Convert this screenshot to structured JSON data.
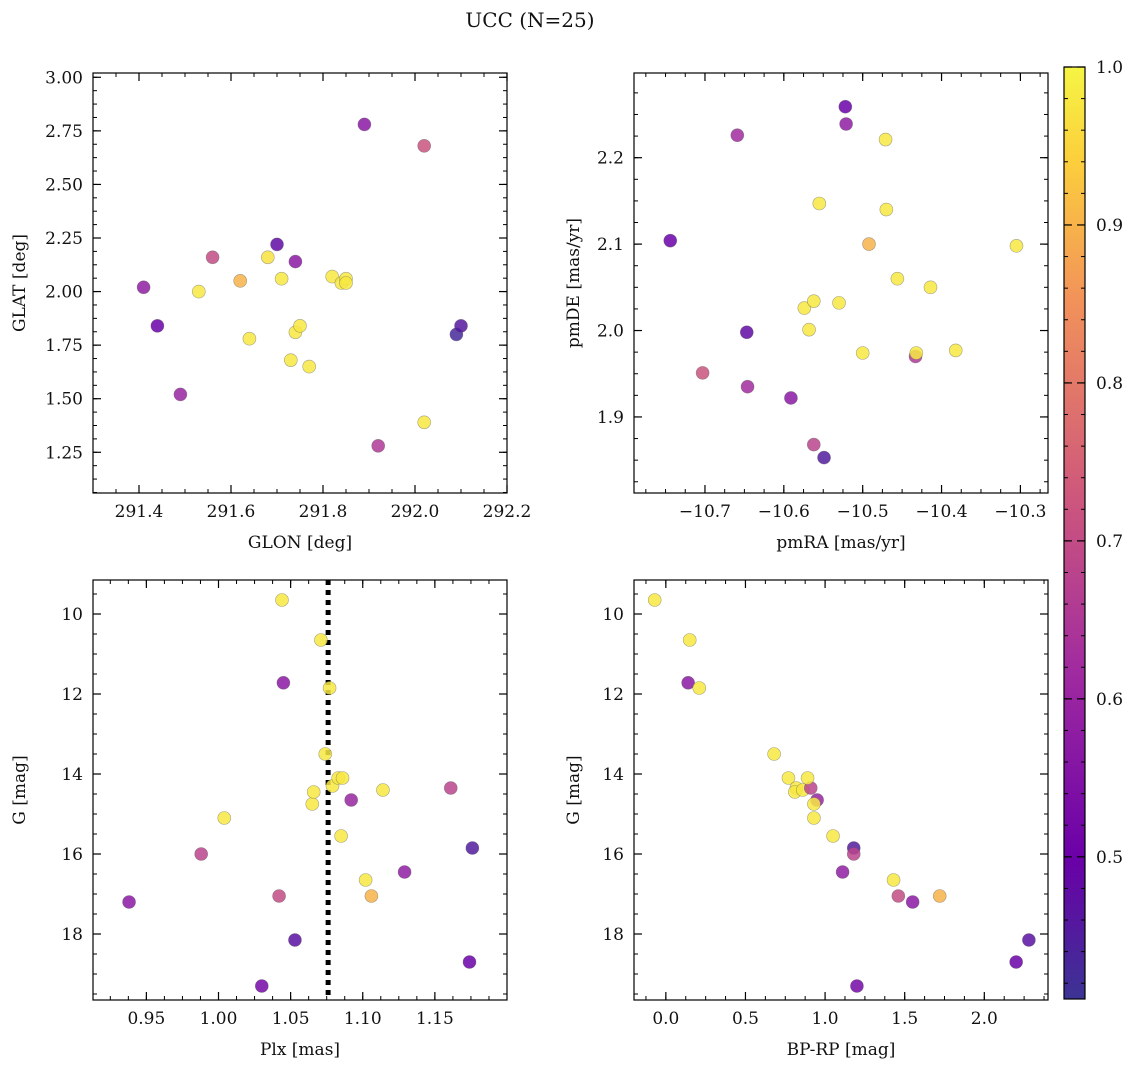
{
  "figure": {
    "title": "UCC (N=25)"
  },
  "colormap": {
    "name": "plasma",
    "min": 0.41,
    "max": 1.0,
    "ticks": [
      0.5,
      0.6,
      0.7,
      0.8,
      0.9,
      1.0
    ],
    "tick_labels": [
      "0.5",
      "0.6",
      "0.7",
      "0.8",
      "0.9",
      "1.0"
    ]
  },
  "chart_data": [
    {
      "type": "scatter",
      "xlabel": "GLON [deg]",
      "ylabel": "GLAT [deg]",
      "xlim": [
        291.3,
        292.2
      ],
      "ylim": [
        1.06,
        3.02
      ],
      "xticks": [
        291.4,
        291.6,
        291.8,
        292.0,
        292.2
      ],
      "xtick_labels": [
        "291.4",
        "291.6",
        "291.8",
        "292.0",
        "292.2"
      ],
      "yticks": [
        1.25,
        1.5,
        1.75,
        2.0,
        2.25,
        2.5,
        2.75,
        3.0
      ],
      "ytick_labels": [
        "1.25",
        "1.50",
        "1.75",
        "2.00",
        "2.25",
        "2.50",
        "2.75",
        "3.00"
      ],
      "points": [
        {
          "x": 291.41,
          "y": 2.02,
          "c": 0.58
        },
        {
          "x": 291.44,
          "y": 1.84,
          "c": 0.5
        },
        {
          "x": 291.49,
          "y": 1.52,
          "c": 0.6
        },
        {
          "x": 291.53,
          "y": 2.0,
          "c": 0.98
        },
        {
          "x": 291.56,
          "y": 2.16,
          "c": 0.7
        },
        {
          "x": 291.62,
          "y": 2.05,
          "c": 0.9
        },
        {
          "x": 291.64,
          "y": 1.78,
          "c": 0.98
        },
        {
          "x": 291.68,
          "y": 2.16,
          "c": 0.97
        },
        {
          "x": 291.7,
          "y": 2.22,
          "c": 0.48
        },
        {
          "x": 291.71,
          "y": 2.06,
          "c": 0.98
        },
        {
          "x": 291.73,
          "y": 1.68,
          "c": 0.98
        },
        {
          "x": 291.74,
          "y": 1.81,
          "c": 0.98
        },
        {
          "x": 291.74,
          "y": 2.14,
          "c": 0.57
        },
        {
          "x": 291.75,
          "y": 1.84,
          "c": 0.98
        },
        {
          "x": 291.77,
          "y": 1.65,
          "c": 0.98
        },
        {
          "x": 291.82,
          "y": 2.07,
          "c": 0.98
        },
        {
          "x": 291.84,
          "y": 2.04,
          "c": 0.98
        },
        {
          "x": 291.85,
          "y": 2.06,
          "c": 0.98
        },
        {
          "x": 291.85,
          "y": 2.04,
          "c": 0.98
        },
        {
          "x": 291.89,
          "y": 2.78,
          "c": 0.57
        },
        {
          "x": 291.92,
          "y": 1.28,
          "c": 0.65
        },
        {
          "x": 292.02,
          "y": 1.39,
          "c": 0.98
        },
        {
          "x": 292.02,
          "y": 2.68,
          "c": 0.72
        },
        {
          "x": 292.09,
          "y": 1.8,
          "c": 0.43
        },
        {
          "x": 292.1,
          "y": 1.84,
          "c": 0.46
        }
      ]
    },
    {
      "type": "scatter",
      "xlabel": "pmRA [mas/yr]",
      "ylabel": "pmDE [mas/yr]",
      "xlim": [
        -10.79,
        -10.265
      ],
      "ylim": [
        1.812,
        2.298
      ],
      "xticks": [
        -10.7,
        -10.6,
        -10.5,
        -10.4,
        -10.3
      ],
      "xtick_labels": [
        "−10.7",
        "−10.6",
        "−10.5",
        "−10.4",
        "−10.3"
      ],
      "yticks": [
        1.9,
        2.0,
        2.1,
        2.2
      ],
      "ytick_labels": [
        "1.9",
        "2.0",
        "2.1",
        "2.2"
      ],
      "points": [
        {
          "x": -10.744,
          "y": 2.104,
          "c": 0.5
        },
        {
          "x": -10.703,
          "y": 1.951,
          "c": 0.72
        },
        {
          "x": -10.659,
          "y": 2.226,
          "c": 0.62
        },
        {
          "x": -10.647,
          "y": 1.998,
          "c": 0.48
        },
        {
          "x": -10.646,
          "y": 1.935,
          "c": 0.62
        },
        {
          "x": -10.591,
          "y": 1.922,
          "c": 0.57
        },
        {
          "x": -10.574,
          "y": 2.026,
          "c": 0.98
        },
        {
          "x": -10.568,
          "y": 2.001,
          "c": 0.98
        },
        {
          "x": -10.562,
          "y": 2.034,
          "c": 0.98
        },
        {
          "x": -10.562,
          "y": 1.868,
          "c": 0.68
        },
        {
          "x": -10.555,
          "y": 2.147,
          "c": 0.98
        },
        {
          "x": -10.549,
          "y": 1.853,
          "c": 0.45
        },
        {
          "x": -10.53,
          "y": 2.032,
          "c": 0.98
        },
        {
          "x": -10.522,
          "y": 2.259,
          "c": 0.5
        },
        {
          "x": -10.521,
          "y": 2.239,
          "c": 0.58
        },
        {
          "x": -10.5,
          "y": 1.974,
          "c": 0.98
        },
        {
          "x": -10.492,
          "y": 2.1,
          "c": 0.9
        },
        {
          "x": -10.471,
          "y": 2.221,
          "c": 0.98
        },
        {
          "x": -10.47,
          "y": 2.14,
          "c": 0.98
        },
        {
          "x": -10.456,
          "y": 2.06,
          "c": 0.98
        },
        {
          "x": -10.433,
          "y": 1.97,
          "c": 0.65
        },
        {
          "x": -10.432,
          "y": 1.974,
          "c": 0.98
        },
        {
          "x": -10.414,
          "y": 2.05,
          "c": 0.98
        },
        {
          "x": -10.382,
          "y": 1.977,
          "c": 0.98
        },
        {
          "x": -10.305,
          "y": 2.098,
          "c": 0.98
        }
      ]
    },
    {
      "type": "scatter",
      "xlabel": "Plx [mas]",
      "ylabel": "G [mag]",
      "xlim": [
        0.913,
        1.2
      ],
      "ylim": [
        19.65,
        9.15
      ],
      "xticks": [
        0.95,
        1.0,
        1.05,
        1.1,
        1.15
      ],
      "xtick_labels": [
        "0.95",
        "1.00",
        "1.05",
        "1.10",
        "1.15"
      ],
      "yticks": [
        10,
        12,
        14,
        16,
        18
      ],
      "ytick_labels": [
        "10",
        "12",
        "14",
        "16",
        "18"
      ],
      "vline": 1.076,
      "points": [
        {
          "x": 0.938,
          "y": 17.2,
          "c": 0.57
        },
        {
          "x": 0.988,
          "y": 16.0,
          "c": 0.68
        },
        {
          "x": 1.004,
          "y": 15.1,
          "c": 0.98
        },
        {
          "x": 1.03,
          "y": 19.3,
          "c": 0.52
        },
        {
          "x": 1.042,
          "y": 17.05,
          "c": 0.7
        },
        {
          "x": 1.044,
          "y": 9.65,
          "c": 0.98
        },
        {
          "x": 1.045,
          "y": 11.72,
          "c": 0.57
        },
        {
          "x": 1.053,
          "y": 18.15,
          "c": 0.47
        },
        {
          "x": 1.065,
          "y": 14.75,
          "c": 0.98
        },
        {
          "x": 1.066,
          "y": 14.45,
          "c": 0.98
        },
        {
          "x": 1.071,
          "y": 10.65,
          "c": 0.98
        },
        {
          "x": 1.074,
          "y": 13.5,
          "c": 0.98
        },
        {
          "x": 1.077,
          "y": 11.85,
          "c": 0.98
        },
        {
          "x": 1.079,
          "y": 14.3,
          "c": 0.98
        },
        {
          "x": 1.083,
          "y": 14.1,
          "c": 0.98
        },
        {
          "x": 1.085,
          "y": 15.55,
          "c": 0.98
        },
        {
          "x": 1.086,
          "y": 14.1,
          "c": 0.98
        },
        {
          "x": 1.092,
          "y": 14.65,
          "c": 0.6
        },
        {
          "x": 1.102,
          "y": 16.65,
          "c": 0.98
        },
        {
          "x": 1.106,
          "y": 17.05,
          "c": 0.9
        },
        {
          "x": 1.114,
          "y": 14.4,
          "c": 0.98
        },
        {
          "x": 1.129,
          "y": 16.45,
          "c": 0.58
        },
        {
          "x": 1.161,
          "y": 14.35,
          "c": 0.68
        },
        {
          "x": 1.174,
          "y": 18.7,
          "c": 0.5
        },
        {
          "x": 1.176,
          "y": 15.85,
          "c": 0.45
        }
      ]
    },
    {
      "type": "scatter",
      "xlabel": "BP-RP [mag]",
      "ylabel": "G [mag]",
      "xlim": [
        -0.2,
        2.4
      ],
      "ylim": [
        19.65,
        9.15
      ],
      "xticks": [
        0.0,
        0.5,
        1.0,
        1.5,
        2.0
      ],
      "xtick_labels": [
        "0.0",
        "0.5",
        "1.0",
        "1.5",
        "2.0"
      ],
      "yticks": [
        10,
        12,
        14,
        16,
        18
      ],
      "ytick_labels": [
        "10",
        "12",
        "14",
        "16",
        "18"
      ],
      "points": [
        {
          "x": -0.07,
          "y": 9.65,
          "c": 0.98
        },
        {
          "x": 0.15,
          "y": 10.65,
          "c": 0.98
        },
        {
          "x": 0.14,
          "y": 11.72,
          "c": 0.57
        },
        {
          "x": 0.21,
          "y": 11.85,
          "c": 0.98
        },
        {
          "x": 0.68,
          "y": 13.5,
          "c": 0.98
        },
        {
          "x": 0.77,
          "y": 14.1,
          "c": 0.98
        },
        {
          "x": 0.82,
          "y": 14.35,
          "c": 0.98
        },
        {
          "x": 0.81,
          "y": 14.45,
          "c": 0.98
        },
        {
          "x": 0.86,
          "y": 14.4,
          "c": 0.98
        },
        {
          "x": 0.91,
          "y": 14.35,
          "c": 0.68
        },
        {
          "x": 0.89,
          "y": 14.1,
          "c": 0.98
        },
        {
          "x": 0.95,
          "y": 14.65,
          "c": 0.6
        },
        {
          "x": 0.93,
          "y": 14.75,
          "c": 0.98
        },
        {
          "x": 0.93,
          "y": 15.1,
          "c": 0.98
        },
        {
          "x": 1.05,
          "y": 15.55,
          "c": 0.98
        },
        {
          "x": 1.18,
          "y": 15.85,
          "c": 0.45
        },
        {
          "x": 1.18,
          "y": 16.0,
          "c": 0.68
        },
        {
          "x": 1.11,
          "y": 16.45,
          "c": 0.58
        },
        {
          "x": 1.43,
          "y": 16.65,
          "c": 0.98
        },
        {
          "x": 1.46,
          "y": 17.05,
          "c": 0.7
        },
        {
          "x": 1.72,
          "y": 17.05,
          "c": 0.9
        },
        {
          "x": 1.55,
          "y": 17.2,
          "c": 0.57
        },
        {
          "x": 2.28,
          "y": 18.15,
          "c": 0.47
        },
        {
          "x": 2.2,
          "y": 18.7,
          "c": 0.5
        },
        {
          "x": 1.2,
          "y": 19.3,
          "c": 0.52
        }
      ]
    }
  ]
}
